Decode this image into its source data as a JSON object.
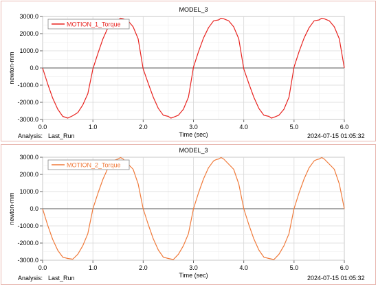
{
  "chart_data": [
    {
      "type": "line",
      "title": "MODEL_3",
      "xlabel": "Time (sec)",
      "ylabel": "newton-mm",
      "xlim": [
        0.0,
        6.0
      ],
      "ylim": [
        -3000.0,
        3000.0
      ],
      "xticks": [
        "0.0",
        "1.0",
        "2.0",
        "3.0",
        "4.0",
        "5.0",
        "6.0"
      ],
      "yticks": [
        "3000.0",
        "2000.0",
        "1000.0",
        "0.0",
        "-1000.0",
        "-2000.0",
        "-3000.0"
      ],
      "grid": true,
      "legend_position": "top-left",
      "series": [
        {
          "name": "MOTION_1_Torque",
          "color": "#e8231f",
          "x": [
            0.0,
            0.1,
            0.2,
            0.3,
            0.4,
            0.5,
            0.55,
            0.6,
            0.7,
            0.8,
            0.9,
            1.0,
            1.1,
            1.2,
            1.3,
            1.4,
            1.5,
            1.55,
            1.6,
            1.7,
            1.8,
            1.9,
            2.0,
            2.1,
            2.2,
            2.3,
            2.4,
            2.5,
            2.55,
            2.6,
            2.7,
            2.8,
            2.9,
            3.0,
            3.1,
            3.2,
            3.3,
            3.4,
            3.5,
            3.55,
            3.6,
            3.7,
            3.8,
            3.9,
            4.0,
            4.1,
            4.2,
            4.3,
            4.4,
            4.5,
            4.55,
            4.6,
            4.7,
            4.8,
            4.9,
            5.0,
            5.1,
            5.2,
            5.3,
            5.4,
            5.5,
            5.55,
            5.6,
            5.7,
            5.8,
            5.9,
            6.0
          ],
          "y": [
            0,
            -920,
            -1750,
            -2400,
            -2820,
            -2920,
            -2850,
            -2780,
            -2600,
            -2150,
            -1500,
            -50,
            850,
            1700,
            2350,
            2750,
            2800,
            2900,
            2870,
            2750,
            2400,
            1700,
            -50,
            -900,
            -1700,
            -2350,
            -2750,
            -2820,
            -2920,
            -2870,
            -2750,
            -2400,
            -1700,
            50,
            950,
            1750,
            2350,
            2750,
            2800,
            2900,
            2870,
            2750,
            2400,
            1700,
            -50,
            -900,
            -1700,
            -2350,
            -2750,
            -2820,
            -2920,
            -2870,
            -2750,
            -2400,
            -1700,
            50,
            950,
            1750,
            2350,
            2750,
            2800,
            2900,
            2870,
            2750,
            2400,
            1700,
            0
          ]
        }
      ],
      "footer": {
        "analysis_label": "Analysis:",
        "analysis_value": "Last_Run",
        "timestamp": "2024-07-15 01:05:32"
      }
    },
    {
      "type": "line",
      "title": "MODEL_3",
      "xlabel": "Time (sec)",
      "ylabel": "newton-mm",
      "xlim": [
        0.0,
        6.0
      ],
      "ylim": [
        -3000.0,
        3000.0
      ],
      "xticks": [
        "0.0",
        "1.0",
        "2.0",
        "3.0",
        "4.0",
        "5.0",
        "6.0"
      ],
      "yticks": [
        "3000.0",
        "2000.0",
        "1000.0",
        "0.0",
        "-1000.0",
        "-2000.0",
        "-3000.0"
      ],
      "grid": true,
      "legend_position": "top-left",
      "series": [
        {
          "name": "MOTION_2_Torque",
          "color": "#f07a3a",
          "x": [
            0.0,
            0.1,
            0.2,
            0.3,
            0.4,
            0.5,
            0.6,
            0.7,
            0.8,
            0.9,
            1.0,
            1.1,
            1.2,
            1.3,
            1.4,
            1.45,
            1.5,
            1.55,
            1.6,
            1.7,
            1.8,
            1.9,
            2.0,
            2.1,
            2.2,
            2.3,
            2.4,
            2.5,
            2.6,
            2.7,
            2.8,
            2.9,
            3.0,
            3.1,
            3.2,
            3.3,
            3.4,
            3.45,
            3.5,
            3.55,
            3.6,
            3.7,
            3.8,
            3.9,
            4.0,
            4.1,
            4.2,
            4.3,
            4.4,
            4.5,
            4.6,
            4.7,
            4.8,
            4.9,
            5.0,
            5.1,
            5.2,
            5.3,
            5.4,
            5.45,
            5.5,
            5.55,
            5.6,
            5.7,
            5.8,
            5.9,
            6.0
          ],
          "y": [
            0,
            -950,
            -1780,
            -2420,
            -2820,
            -2900,
            -2940,
            -2650,
            -2150,
            -1450,
            0,
            900,
            1720,
            2370,
            2780,
            2850,
            2900,
            2980,
            2900,
            2600,
            2300,
            1450,
            0,
            -920,
            -1750,
            -2400,
            -2820,
            -2900,
            -2960,
            -2650,
            -2150,
            -1450,
            0,
            920,
            1740,
            2390,
            2790,
            2860,
            2900,
            2980,
            2900,
            2600,
            2300,
            1450,
            0,
            -920,
            -1750,
            -2400,
            -2820,
            -2900,
            -2960,
            -2650,
            -2150,
            -1450,
            0,
            920,
            1740,
            2390,
            2790,
            2860,
            2900,
            2980,
            2900,
            2600,
            2300,
            1450,
            0
          ]
        }
      ],
      "footer": {
        "analysis_label": "Analysis:",
        "analysis_value": "Last_Run",
        "timestamp": "2024-07-15 01:05:32"
      }
    }
  ]
}
